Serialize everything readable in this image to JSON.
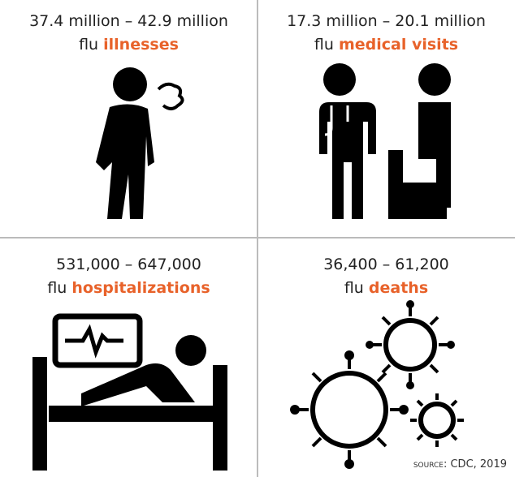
{
  "cells": [
    {
      "range": "37.4 million – 42.9 million",
      "prefix": "flu",
      "highlight": "illnesses"
    },
    {
      "range": "17.3 million – 20.1 million",
      "prefix": "flu",
      "highlight": "medical visits"
    },
    {
      "range": "531,000 – 647,000",
      "prefix": "flu",
      "highlight": "hospitalizations"
    },
    {
      "range": "36,400 – 61,200",
      "prefix": "flu",
      "highlight": "deaths"
    }
  ],
  "source": "source: CDC, 2019"
}
